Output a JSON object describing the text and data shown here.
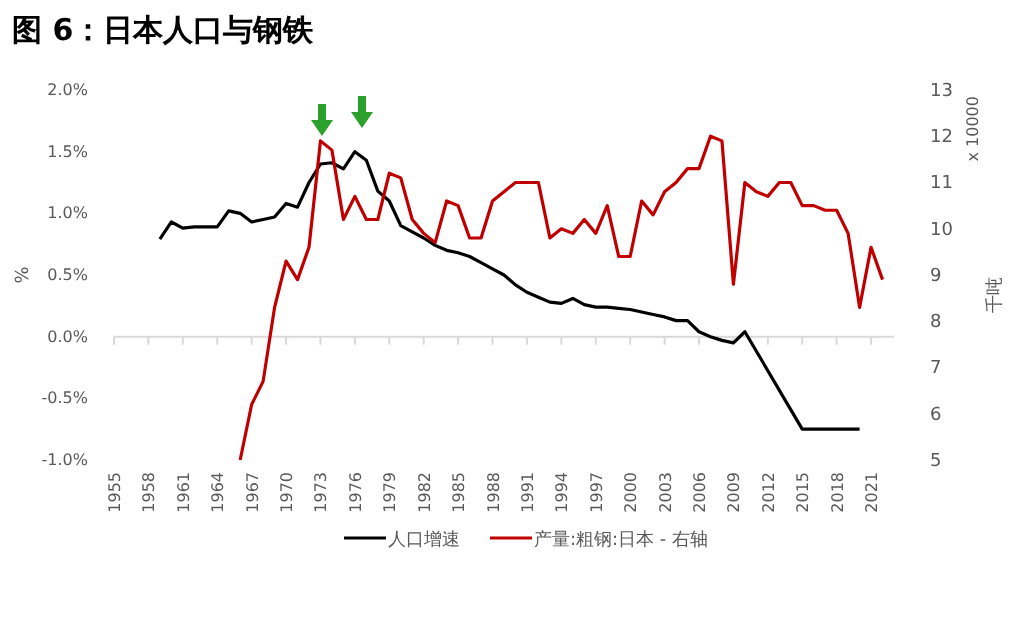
{
  "chart_data": {
    "type": "line",
    "title": "图 6：日本人口与钢铁",
    "ylabel": "%",
    "y2label": "千吨",
    "annotations": [
      "x 10000"
    ],
    "xlim": [
      1955,
      2023
    ],
    "xticks": [
      1955,
      1958,
      1961,
      1964,
      1967,
      1970,
      1973,
      1976,
      1979,
      1982,
      1985,
      1988,
      1991,
      1994,
      1997,
      2000,
      2003,
      2006,
      2009,
      2012,
      2015,
      2018,
      2021
    ],
    "ylim": [
      -1.0,
      2.0
    ],
    "yticks": [
      {
        "value": -1.0,
        "label": "-1.0%"
      },
      {
        "value": -0.5,
        "label": "-0.5%"
      },
      {
        "value": 0,
        "label": "0.0%"
      },
      {
        "value": 0.5,
        "label": "0.5%"
      },
      {
        "value": 1.0,
        "label": "1.0%"
      },
      {
        "value": 1.5,
        "label": "1.5%"
      },
      {
        "value": 2.0,
        "label": "2.0%"
      }
    ],
    "y2lim": [
      5,
      13
    ],
    "y2ticks": [
      5,
      6,
      7,
      8,
      9,
      10,
      11,
      12,
      13
    ],
    "legend": "bottom",
    "line_style": "solid",
    "marker": "none",
    "series": [
      {
        "name": "人口增速",
        "color": "#000000",
        "x": [
          1959,
          1960,
          1961,
          1962,
          1963,
          1964,
          1965,
          1966,
          1967,
          1968,
          1969,
          1970,
          1971,
          1972,
          1973,
          1974,
          1975,
          1976,
          1977,
          1978,
          1979,
          1980,
          1981,
          1982,
          1983,
          1984,
          1985,
          1986,
          1987,
          1988,
          1989,
          1990,
          1991,
          1992,
          1993,
          1994,
          1995,
          1996,
          1997,
          1998,
          1999,
          2000,
          2001,
          2002,
          2003,
          2004,
          2005,
          2006,
          2007,
          2008,
          2009,
          2010,
          2015,
          2020
        ],
        "values": [
          0.79,
          0.93,
          0.88,
          0.89,
          0.89,
          0.89,
          1.02,
          1.0,
          0.93,
          0.95,
          0.97,
          1.08,
          1.05,
          1.25,
          1.4,
          1.41,
          1.36,
          1.5,
          1.43,
          1.18,
          1.1,
          0.9,
          0.85,
          0.8,
          0.74,
          0.7,
          0.68,
          0.65,
          0.6,
          0.55,
          0.5,
          0.42,
          0.36,
          0.32,
          0.28,
          0.27,
          0.31,
          0.26,
          0.24,
          0.24,
          0.23,
          0.22,
          0.2,
          0.18,
          0.16,
          0.13,
          0.13,
          0.04,
          0.0,
          -0.03,
          -0.05,
          0.04,
          -0.75,
          -0.75
        ]
      },
      {
        "name": "产量:粗钢:日本 - 右轴",
        "color": "#c00000",
        "axis": "y2",
        "x": [
          1966,
          1967,
          1968,
          1969,
          1970,
          1971,
          1972,
          1973,
          1974,
          1975,
          1976,
          1977,
          1978,
          1979,
          1980,
          1981,
          1982,
          1983,
          1984,
          1985,
          1986,
          1987,
          1988,
          1989,
          1990,
          1991,
          1992,
          1993,
          1994,
          1995,
          1996,
          1997,
          1998,
          1999,
          2000,
          2001,
          2002,
          2003,
          2004,
          2005,
          2006,
          2007,
          2008,
          2009,
          2010,
          2011,
          2012,
          2013,
          2014,
          2015,
          2016,
          2017,
          2018,
          2019,
          2020,
          2021,
          2022
        ],
        "values": [
          5.0,
          6.2,
          6.7,
          8.3,
          9.3,
          8.9,
          9.6,
          11.9,
          11.7,
          10.2,
          10.7,
          10.2,
          10.2,
          11.2,
          11.1,
          10.2,
          9.9,
          9.7,
          10.6,
          10.5,
          9.8,
          9.8,
          10.6,
          10.8,
          11.0,
          11.0,
          11.0,
          9.8,
          10.0,
          9.9,
          10.2,
          9.9,
          10.5,
          9.4,
          9.4,
          10.6,
          10.3,
          10.8,
          11.0,
          11.3,
          11.3,
          12.0,
          11.9,
          8.8,
          11.0,
          10.8,
          10.7,
          11.0,
          11.0,
          10.5,
          10.5,
          10.4,
          10.4,
          9.9,
          8.3,
          9.6,
          8.9
        ]
      }
    ]
  }
}
